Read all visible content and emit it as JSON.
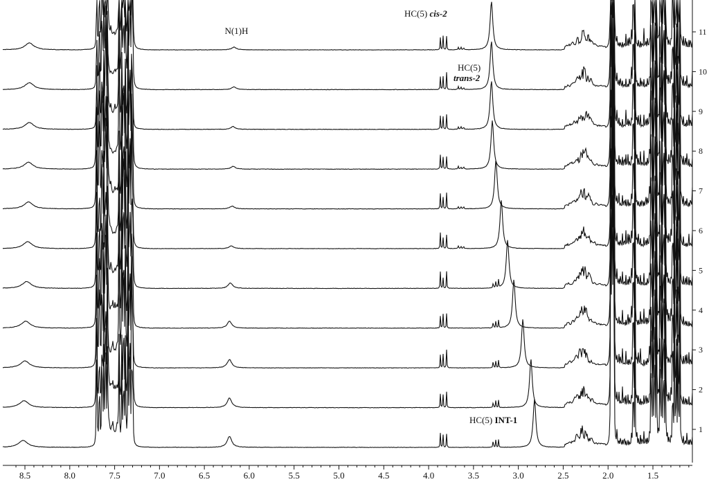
{
  "chart_data": {
    "type": "line",
    "title": "",
    "xlabel": "",
    "ylabel": "",
    "x_axis": {
      "reversed": true,
      "xlim": [
        8.62,
        0.62
      ],
      "ticks": [
        8.5,
        8.0,
        7.5,
        7.0,
        6.5,
        6.0,
        5.5,
        5.0,
        4.5,
        4.0,
        3.5,
        3.0,
        2.5,
        2.0,
        1.5
      ],
      "tick_labels": [
        "8.5",
        "8.0",
        "7.5",
        "7.0",
        "6.5",
        "6.0",
        "5.5",
        "5.0",
        "4.5",
        "4.0",
        "3.5",
        "3.0",
        "2.5",
        "2.0",
        "1.5"
      ]
    },
    "right_axis": {
      "tick_labels": [
        "1",
        "2",
        "3",
        "4",
        "5",
        "6",
        "7",
        "8",
        "9",
        "10",
        "11"
      ]
    },
    "grid": false,
    "legend": "none",
    "stack_color": "#111111",
    "series": [
      {
        "label": "1",
        "intermediate_peak_ppm": 2.82,
        "nh_ppm": 6.22,
        "aromatic_nh_ppm": 8.52
      },
      {
        "label": "2",
        "intermediate_peak_ppm": 2.86,
        "nh_ppm": 6.22,
        "aromatic_nh_ppm": 8.51
      },
      {
        "label": "3",
        "intermediate_peak_ppm": 2.95,
        "nh_ppm": 6.22,
        "aromatic_nh_ppm": 8.5
      },
      {
        "label": "4",
        "intermediate_peak_ppm": 3.05,
        "nh_ppm": 6.22,
        "aromatic_nh_ppm": 8.49
      },
      {
        "label": "5",
        "intermediate_peak_ppm": 3.12,
        "nh_ppm": 6.21,
        "aromatic_nh_ppm": 8.48
      },
      {
        "label": "6",
        "intermediate_peak_ppm": 3.19,
        "nh_ppm": 6.2,
        "aromatic_nh_ppm": 8.47
      },
      {
        "label": "7",
        "intermediate_peak_ppm": 3.25,
        "nh_ppm": 6.19,
        "aromatic_nh_ppm": 8.46
      },
      {
        "label": "8",
        "intermediate_peak_ppm": 3.29,
        "nh_ppm": 6.18,
        "aromatic_nh_ppm": 8.46
      },
      {
        "label": "9",
        "intermediate_peak_ppm": 3.3,
        "nh_ppm": 6.18,
        "aromatic_nh_ppm": 8.45
      },
      {
        "label": "10",
        "intermediate_peak_ppm": 3.3,
        "nh_ppm": 6.17,
        "aromatic_nh_ppm": 8.45
      },
      {
        "label": "11",
        "intermediate_peak_ppm": 3.3,
        "nh_ppm": 6.17,
        "aromatic_nh_ppm": 8.45
      }
    ],
    "annotations": [
      {
        "id": "nh",
        "text": "N(1)H",
        "ppm": 6.18
      },
      {
        "id": "cis",
        "text_prefix": "HC(5) ",
        "text_bold": "cis-2",
        "ppm": 3.55
      },
      {
        "id": "trans",
        "line1": "HC(5)",
        "line2": "trans-2",
        "ppm": 3.5
      },
      {
        "id": "int",
        "text_prefix": "HC(5) ",
        "text_bold": "INT-1",
        "ppm": 3.15
      }
    ]
  }
}
